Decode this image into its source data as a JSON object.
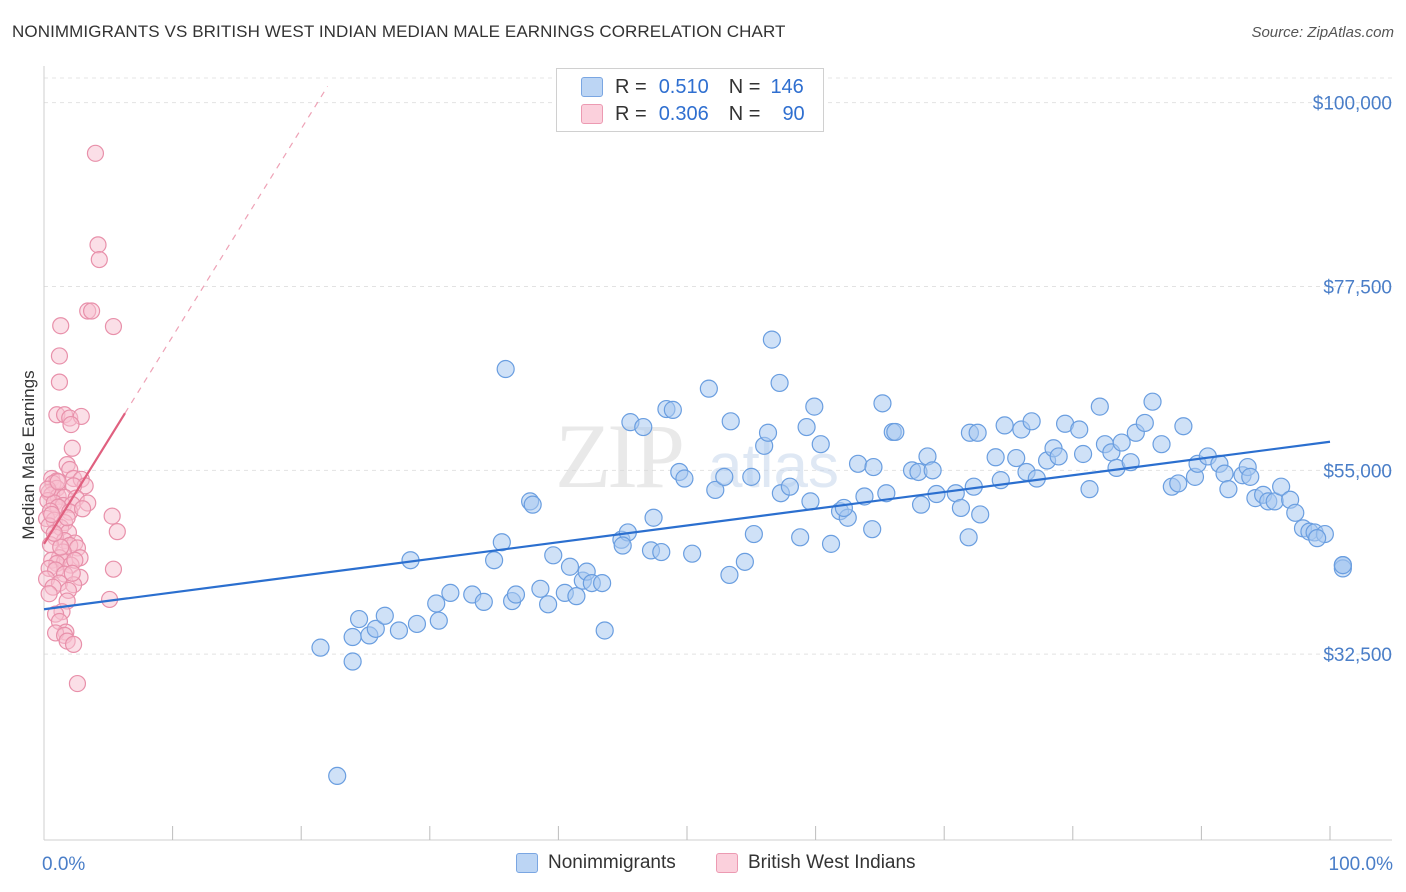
{
  "header": {
    "title": "NONIMMIGRANTS VS BRITISH WEST INDIAN MEDIAN MALE EARNINGS CORRELATION CHART",
    "source": "Source: ZipAtlas.com"
  },
  "legend": {
    "items": [
      {
        "r_label": "R =",
        "r_value": "0.510",
        "n_label": "N =",
        "n_value": "146",
        "color": "#a8c8f0",
        "border": "#6a9ee0"
      },
      {
        "r_label": "R =",
        "r_value": "0.306",
        "n_label": "N =",
        "n_value": "90",
        "color": "#f8c0d0",
        "border": "#e890aa"
      }
    ]
  },
  "bottom_legend": {
    "items": [
      {
        "label": "Nonimmigrants",
        "color": "#a8c8f0",
        "border": "#6a9ee0"
      },
      {
        "label": "British West Indians",
        "color": "#f8c0d0",
        "border": "#e890aa"
      }
    ]
  },
  "watermark": {
    "zip": "ZIP",
    "atlas": "atlas"
  },
  "chart_data": {
    "type": "scatter",
    "title": "NONIMMIGRANTS VS BRITISH WEST INDIAN MEDIAN MALE EARNINGS CORRELATION CHART",
    "xlabel": "",
    "ylabel": "Median Male Earnings",
    "xlim": [
      0,
      100
    ],
    "ylim": [
      10000,
      104000
    ],
    "x_tick_labels": [
      "0.0%",
      "100.0%"
    ],
    "y_ticks": [
      32500,
      55000,
      77500,
      100000
    ],
    "y_tick_labels": [
      "$32,500",
      "$55,000",
      "$77,500",
      "$100,000"
    ],
    "grid": true,
    "colors": {
      "blue_fill": "#a8c8f0",
      "blue_stroke": "#6a9ee0",
      "blue_line": "#2b6fcf",
      "pink_fill": "#f8c0d0",
      "pink_stroke": "#e890aa",
      "pink_line": "#e0607f"
    },
    "series": [
      {
        "name": "Nonimmigrants",
        "trend": {
          "x": [
            0,
            100
          ],
          "y": [
            38000,
            58500
          ]
        },
        "points": [
          [
            21.5,
            33300
          ],
          [
            22.8,
            17600
          ],
          [
            24.0,
            31600
          ],
          [
            24.0,
            34600
          ],
          [
            25.3,
            34800
          ],
          [
            25.8,
            35600
          ],
          [
            24.5,
            36800
          ],
          [
            26.5,
            37200
          ],
          [
            27.6,
            35400
          ],
          [
            29.0,
            36200
          ],
          [
            28.5,
            44000
          ],
          [
            30.7,
            36600
          ],
          [
            30.5,
            38700
          ],
          [
            31.6,
            40000
          ],
          [
            33.3,
            39800
          ],
          [
            34.2,
            38900
          ],
          [
            35.6,
            46200
          ],
          [
            35.9,
            67400
          ],
          [
            35.0,
            44000
          ],
          [
            36.4,
            39000
          ],
          [
            36.7,
            39800
          ],
          [
            37.8,
            51200
          ],
          [
            38.0,
            50800
          ],
          [
            38.6,
            40500
          ],
          [
            39.2,
            38600
          ],
          [
            39.6,
            44600
          ],
          [
            40.5,
            40000
          ],
          [
            40.9,
            43200
          ],
          [
            41.4,
            39600
          ],
          [
            41.9,
            41500
          ],
          [
            42.2,
            42600
          ],
          [
            42.6,
            41200
          ],
          [
            43.4,
            41200
          ],
          [
            43.6,
            35400
          ],
          [
            44.9,
            46500
          ],
          [
            45.4,
            47400
          ],
          [
            45.0,
            45800
          ],
          [
            45.6,
            60900
          ],
          [
            46.6,
            60300
          ],
          [
            47.2,
            45200
          ],
          [
            47.4,
            49200
          ],
          [
            48.4,
            62500
          ],
          [
            48.9,
            62400
          ],
          [
            49.4,
            54800
          ],
          [
            49.8,
            54000
          ],
          [
            50.4,
            44800
          ],
          [
            51.7,
            65000
          ],
          [
            52.2,
            52600
          ],
          [
            52.9,
            54200
          ],
          [
            53.3,
            42200
          ],
          [
            53.4,
            61000
          ],
          [
            54.5,
            43800
          ],
          [
            55.0,
            54200
          ],
          [
            55.2,
            47200
          ],
          [
            56.0,
            58000
          ],
          [
            56.6,
            71000
          ],
          [
            56.3,
            59600
          ],
          [
            57.2,
            65700
          ],
          [
            57.3,
            52200
          ],
          [
            58.8,
            46800
          ],
          [
            59.3,
            60300
          ],
          [
            59.6,
            51200
          ],
          [
            59.9,
            62800
          ],
          [
            60.4,
            58200
          ],
          [
            61.2,
            46000
          ],
          [
            61.9,
            50000
          ],
          [
            62.5,
            49200
          ],
          [
            62.2,
            50400
          ],
          [
            63.3,
            55800
          ],
          [
            63.8,
            51800
          ],
          [
            64.5,
            55400
          ],
          [
            64.4,
            47800
          ],
          [
            65.2,
            63200
          ],
          [
            65.5,
            52200
          ],
          [
            66.0,
            59700
          ],
          [
            66.2,
            59700
          ],
          [
            67.5,
            55000
          ],
          [
            68.0,
            54800
          ],
          [
            68.7,
            56700
          ],
          [
            68.2,
            50800
          ],
          [
            69.1,
            55000
          ],
          [
            69.4,
            52100
          ],
          [
            70.9,
            52200
          ],
          [
            71.3,
            50400
          ],
          [
            71.9,
            46800
          ],
          [
            72.0,
            59600
          ],
          [
            72.6,
            59600
          ],
          [
            72.3,
            53000
          ],
          [
            72.8,
            49600
          ],
          [
            74.0,
            56600
          ],
          [
            74.4,
            53800
          ],
          [
            74.7,
            60500
          ],
          [
            75.6,
            56500
          ],
          [
            76.0,
            60000
          ],
          [
            76.4,
            54800
          ],
          [
            76.8,
            61000
          ],
          [
            77.2,
            54000
          ],
          [
            78.0,
            56200
          ],
          [
            78.5,
            57700
          ],
          [
            78.9,
            56700
          ],
          [
            79.4,
            60700
          ],
          [
            80.5,
            60000
          ],
          [
            80.8,
            57000
          ],
          [
            81.3,
            52700
          ],
          [
            82.1,
            62800
          ],
          [
            82.5,
            58200
          ],
          [
            83.0,
            57200
          ],
          [
            83.4,
            55300
          ],
          [
            83.8,
            58400
          ],
          [
            84.5,
            56000
          ],
          [
            84.9,
            59600
          ],
          [
            85.6,
            60800
          ],
          [
            86.2,
            63400
          ],
          [
            86.9,
            58200
          ],
          [
            87.7,
            53000
          ],
          [
            88.2,
            53400
          ],
          [
            88.6,
            60400
          ],
          [
            89.5,
            54200
          ],
          [
            89.7,
            55800
          ],
          [
            90.5,
            56700
          ],
          [
            91.4,
            55800
          ],
          [
            91.8,
            54600
          ],
          [
            92.1,
            52700
          ],
          [
            93.2,
            54400
          ],
          [
            93.6,
            55400
          ],
          [
            93.8,
            54200
          ],
          [
            94.2,
            51600
          ],
          [
            94.8,
            52000
          ],
          [
            95.2,
            51200
          ],
          [
            95.7,
            51200
          ],
          [
            96.2,
            53000
          ],
          [
            96.9,
            51400
          ],
          [
            97.3,
            49800
          ],
          [
            97.9,
            47900
          ],
          [
            98.4,
            47500
          ],
          [
            98.8,
            47400
          ],
          [
            99.6,
            47200
          ],
          [
            101.4,
            43400
          ],
          [
            102.1,
            43000
          ],
          [
            101.9,
            43400
          ],
          [
            99.0,
            46700
          ],
          [
            48.0,
            45000
          ],
          [
            58.0,
            53000
          ]
        ]
      },
      {
        "name": "British West Indians",
        "trend": {
          "x": [
            0,
            6.3
          ],
          "y": [
            46000,
            62000
          ]
        },
        "points": [
          [
            4.0,
            93800
          ],
          [
            4.2,
            82600
          ],
          [
            4.3,
            80800
          ],
          [
            3.4,
            74500
          ],
          [
            3.7,
            74500
          ],
          [
            1.3,
            72700
          ],
          [
            5.4,
            72600
          ],
          [
            1.2,
            69000
          ],
          [
            1.2,
            65800
          ],
          [
            1.0,
            61800
          ],
          [
            1.6,
            61800
          ],
          [
            2.0,
            61400
          ],
          [
            2.9,
            61600
          ],
          [
            2.1,
            60600
          ],
          [
            2.2,
            57700
          ],
          [
            1.8,
            55700
          ],
          [
            2.0,
            55100
          ],
          [
            0.6,
            54000
          ],
          [
            1.0,
            53700
          ],
          [
            2.3,
            54000
          ],
          [
            2.9,
            53900
          ],
          [
            0.7,
            53400
          ],
          [
            3.2,
            53100
          ],
          [
            1.0,
            52800
          ],
          [
            2.3,
            53100
          ],
          [
            0.4,
            52300
          ],
          [
            0.6,
            52000
          ],
          [
            1.1,
            51800
          ],
          [
            1.6,
            51700
          ],
          [
            2.5,
            51600
          ],
          [
            0.3,
            51300
          ],
          [
            0.8,
            51000
          ],
          [
            1.5,
            50700
          ],
          [
            2.2,
            50800
          ],
          [
            3.4,
            51000
          ],
          [
            1.1,
            50500
          ],
          [
            0.5,
            50000
          ],
          [
            2.0,
            49900
          ],
          [
            5.3,
            49400
          ],
          [
            0.2,
            49100
          ],
          [
            0.8,
            48900
          ],
          [
            1.6,
            48600
          ],
          [
            0.4,
            48200
          ],
          [
            1.3,
            48000
          ],
          [
            5.7,
            47500
          ],
          [
            1.9,
            47400
          ],
          [
            0.9,
            46800
          ],
          [
            1.6,
            46400
          ],
          [
            2.4,
            46100
          ],
          [
            0.5,
            45900
          ],
          [
            2.0,
            45800
          ],
          [
            2.6,
            45500
          ],
          [
            1.5,
            45000
          ],
          [
            1.2,
            44300
          ],
          [
            2.8,
            44300
          ],
          [
            0.6,
            44000
          ],
          [
            1.6,
            43800
          ],
          [
            1.0,
            43600
          ],
          [
            2.1,
            43400
          ],
          [
            0.4,
            43000
          ],
          [
            0.9,
            42800
          ],
          [
            5.4,
            42900
          ],
          [
            1.6,
            42300
          ],
          [
            2.8,
            41900
          ],
          [
            0.2,
            41700
          ],
          [
            1.2,
            41200
          ],
          [
            2.3,
            41000
          ],
          [
            0.7,
            40700
          ],
          [
            1.9,
            40300
          ],
          [
            0.4,
            39900
          ],
          [
            5.1,
            39200
          ],
          [
            1.8,
            39000
          ],
          [
            1.4,
            37700
          ],
          [
            0.9,
            37400
          ],
          [
            1.2,
            36500
          ],
          [
            1.7,
            35200
          ],
          [
            0.9,
            35100
          ],
          [
            1.6,
            34800
          ],
          [
            1.8,
            34100
          ],
          [
            2.3,
            33700
          ],
          [
            2.6,
            28900
          ],
          [
            1.3,
            45600
          ],
          [
            0.8,
            47300
          ],
          [
            1.8,
            49200
          ],
          [
            3.0,
            50300
          ],
          [
            0.3,
            52700
          ],
          [
            2.4,
            44000
          ],
          [
            1.1,
            53600
          ],
          [
            0.6,
            49600
          ],
          [
            2.2,
            42400
          ]
        ]
      }
    ]
  }
}
